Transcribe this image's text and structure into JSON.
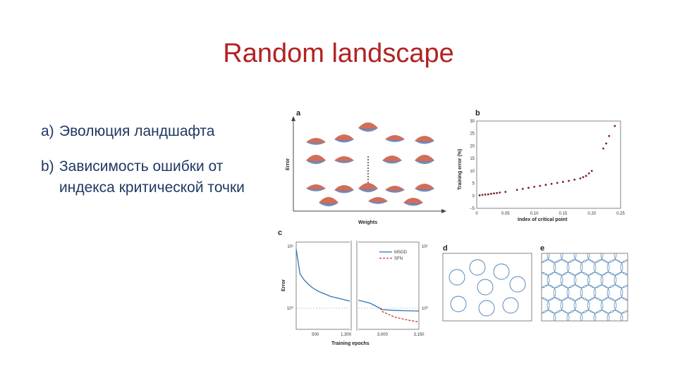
{
  "slide": {
    "title": "Random landscape",
    "bullets": [
      {
        "marker": "a)",
        "text": "Эволюция ландшафта"
      },
      {
        "marker": "b)",
        "text": "Зависимость ошибки от индекса критической точки"
      }
    ]
  },
  "figure": {
    "panel_a": {
      "letter": "a",
      "ylabel": "Error",
      "xlabel": "Weights"
    },
    "panel_b": {
      "letter": "b"
    },
    "panel_c": {
      "letter": "c"
    },
    "panel_d": {
      "letter": "d"
    },
    "panel_e": {
      "letter": "e"
    }
  },
  "colors": {
    "title": "#b22222",
    "text": "#1f3864",
    "msgd": "#2e75b6",
    "sfn": "#c0392b",
    "points": "#7b1e2b"
  },
  "chart_data": [
    {
      "type": "scatter",
      "panel": "b",
      "ylabel": "Training error (%)",
      "xlabel": "Index of critical point",
      "xlim": [
        0,
        0.25
      ],
      "ylim": [
        -5,
        30
      ],
      "xticks": [
        "0",
        "0.05",
        "0.10",
        "0.15",
        "0.20",
        "0.25"
      ],
      "yticks": [
        "30",
        "25",
        "20",
        "15",
        "10",
        "5",
        "0",
        "−5"
      ],
      "x": [
        0.005,
        0.01,
        0.015,
        0.02,
        0.025,
        0.03,
        0.035,
        0.04,
        0.05,
        0.07,
        0.08,
        0.09,
        0.1,
        0.11,
        0.12,
        0.13,
        0.14,
        0.15,
        0.16,
        0.17,
        0.18,
        0.185,
        0.19,
        0.195,
        0.2,
        0.22,
        0.225,
        0.23,
        0.24
      ],
      "y": [
        0.2,
        0.4,
        0.5,
        0.6,
        0.8,
        1.0,
        1.1,
        1.3,
        1.6,
        2.4,
        2.8,
        3.2,
        3.6,
        4.0,
        4.4,
        4.8,
        5.2,
        5.6,
        6.0,
        6.5,
        7.0,
        7.5,
        8.0,
        9.0,
        10.0,
        19.0,
        21.0,
        24.0,
        28.0
      ]
    },
    {
      "type": "line",
      "panel": "c",
      "ylabel": "Error",
      "xlabel": "Training epochs",
      "yscale": "log",
      "yticks_left": [
        "10¹",
        "10⁰"
      ],
      "yticks_right": [
        "10¹",
        "10⁰"
      ],
      "xticks": [
        "500",
        "1,300",
        "3,000",
        "3,150"
      ],
      "legend": [
        "MSGD",
        "SFN"
      ],
      "series": [
        {
          "name": "MSGD",
          "x": [
            0,
            100,
            200,
            300,
            400,
            500,
            600,
            700,
            800,
            900,
            1000,
            1100,
            1200,
            1300,
            1400,
            2900,
            2950,
            3000,
            3050,
            3100,
            3150
          ],
          "y": [
            9.0,
            3.6,
            2.9,
            2.5,
            2.2,
            2.0,
            1.85,
            1.75,
            1.65,
            1.55,
            1.5,
            1.45,
            1.4,
            1.35,
            1.3,
            1.35,
            1.2,
            0.95,
            0.92,
            0.91,
            0.9
          ]
        },
        {
          "name": "SFN",
          "x": [
            2990,
            3000,
            3050,
            3100,
            3150
          ],
          "y": [
            1.0,
            0.88,
            0.72,
            0.65,
            0.6
          ]
        }
      ]
    }
  ]
}
